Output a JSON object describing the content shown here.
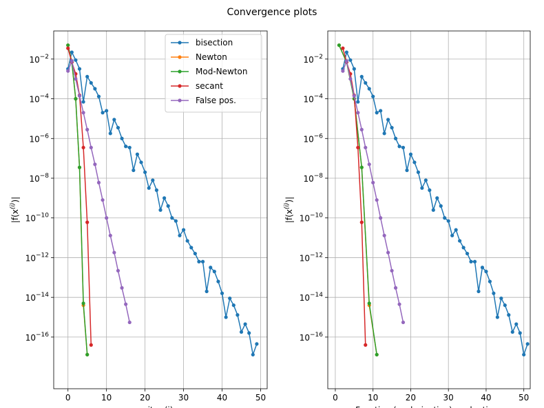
{
  "title": "Convergence plots",
  "chart_data": [
    {
      "type": "line",
      "log_y": true,
      "grid": true,
      "legend": "upper right",
      "xlabel": "iter (i)",
      "ylabel": [
        "|f(x",
        "(i)",
        ")|"
      ],
      "xlim": [
        -3.7,
        51.7
      ],
      "xticks": [
        0,
        10,
        20,
        30,
        40,
        50
      ],
      "ylim": [
        2.5e-19,
        0.26
      ],
      "yticks": [
        {
          "value": 1e-16,
          "label": "10−16"
        },
        {
          "value": 1e-14,
          "label": "10−14"
        },
        {
          "value": 1e-12,
          "label": "10−12"
        },
        {
          "value": 1e-10,
          "label": "10−10"
        },
        {
          "value": 1e-08,
          "label": "10−8"
        },
        {
          "value": 1e-06,
          "label": "10−6"
        },
        {
          "value": 0.0001,
          "label": "10−4"
        },
        {
          "value": 0.01,
          "label": "10−2"
        }
      ],
      "series": [
        {
          "name": "bisection",
          "color": "#1f77b4",
          "x": [
            0,
            1,
            2,
            3,
            4,
            5,
            6,
            7,
            8,
            9,
            10,
            11,
            12,
            13,
            14,
            15,
            16,
            17,
            18,
            19,
            20,
            21,
            22,
            23,
            24,
            25,
            26,
            27,
            28,
            29,
            30,
            31,
            32,
            33,
            34,
            35,
            36,
            37,
            38,
            39,
            40,
            41,
            42,
            43,
            44,
            45,
            46,
            47,
            48,
            49
          ],
          "values": [
            0.0032,
            0.022,
            0.0089,
            0.0032,
            7e-05,
            0.0013,
            0.00063,
            0.00032,
            0.00013,
            2e-05,
            2.5e-05,
            1.8e-06,
            8.9e-06,
            3.5e-06,
            1e-06,
            4e-07,
            3.5e-07,
            2.5e-08,
            1.6e-07,
            6.3e-08,
            2e-08,
            3.2e-09,
            7.9e-09,
            2.5e-09,
            2.5e-10,
            1e-09,
            4e-10,
            1e-10,
            7e-11,
            1.3e-11,
            2.5e-11,
            7e-12,
            3.2e-12,
            1.6e-12,
            6.3e-13,
            6.3e-13,
            2e-14,
            3.2e-13,
            2e-13,
            6.3e-14,
            1.6e-14,
            1e-15,
            8.9e-15,
            4e-15,
            1.3e-15,
            1.8e-16,
            4.5e-16,
            1.6e-16,
            1.3e-17,
            4.5e-17
          ]
        },
        {
          "name": "Newton",
          "color": "#ff7f0e",
          "x": [
            0,
            1,
            2,
            3,
            4,
            5
          ],
          "values": [
            0.05,
            0.007,
            0.0001,
            3.5e-08,
            4e-15,
            1.3e-17
          ]
        },
        {
          "name": "Mod-Newton",
          "color": "#2ca02c",
          "x": [
            0,
            1,
            2,
            3,
            4,
            5
          ],
          "values": [
            0.05,
            0.007,
            0.0001,
            3.5e-08,
            5e-15,
            1.3e-17
          ]
        },
        {
          "name": "secant",
          "color": "#d62728",
          "x": [
            0,
            1,
            2,
            3,
            4,
            5,
            6
          ],
          "values": [
            0.035,
            0.007,
            0.0018,
            0.00015,
            3.5e-07,
            6e-11,
            4e-17
          ]
        },
        {
          "name": "False pos.",
          "color": "#9467bd",
          "x": [
            0,
            1,
            2,
            3,
            4,
            5,
            6,
            7,
            8,
            9,
            10,
            11,
            12,
            13,
            14,
            15,
            16
          ],
          "values": [
            0.0025,
            0.008,
            0.001,
            0.00014,
            2e-05,
            2.8e-06,
            3.5e-07,
            5e-08,
            6e-09,
            8e-10,
            1e-10,
            1.3e-11,
            1.8e-12,
            2.2e-13,
            3e-14,
            4.5e-15,
            5.5e-16
          ]
        }
      ]
    },
    {
      "type": "line",
      "log_y": true,
      "grid": true,
      "xlabel": "Function (or derivative) evaluations",
      "ylabel": [
        "|f(x",
        "(i)",
        ")|"
      ],
      "xlim": [
        -2,
        51.7
      ],
      "xticks": [
        0,
        10,
        20,
        30,
        40,
        50
      ],
      "ylim": [
        2.5e-19,
        0.26
      ],
      "yticks": [
        {
          "value": 1e-16,
          "label": "10−16"
        },
        {
          "value": 1e-14,
          "label": "10−14"
        },
        {
          "value": 1e-12,
          "label": "10−12"
        },
        {
          "value": 1e-10,
          "label": "10−10"
        },
        {
          "value": 1e-08,
          "label": "10−8"
        },
        {
          "value": 1e-06,
          "label": "10−6"
        },
        {
          "value": 0.0001,
          "label": "10−4"
        },
        {
          "value": 0.01,
          "label": "10−2"
        }
      ],
      "series": [
        {
          "color": "#1f77b4",
          "x": [
            2,
            3,
            4,
            5,
            6,
            7,
            8,
            9,
            10,
            11,
            12,
            13,
            14,
            15,
            16,
            17,
            18,
            19,
            20,
            21,
            22,
            23,
            24,
            25,
            26,
            27,
            28,
            29,
            30,
            31,
            32,
            33,
            34,
            35,
            36,
            37,
            38,
            39,
            40,
            41,
            42,
            43,
            44,
            45,
            46,
            47,
            48,
            49,
            50,
            51
          ],
          "values": [
            0.0032,
            0.022,
            0.0089,
            0.0032,
            7e-05,
            0.0013,
            0.00063,
            0.00032,
            0.00013,
            2e-05,
            2.5e-05,
            1.8e-06,
            8.9e-06,
            3.5e-06,
            1e-06,
            4e-07,
            3.5e-07,
            2.5e-08,
            1.6e-07,
            6.3e-08,
            2e-08,
            3.2e-09,
            7.9e-09,
            2.5e-09,
            2.5e-10,
            1e-09,
            4e-10,
            1e-10,
            7e-11,
            1.3e-11,
            2.5e-11,
            7e-12,
            3.2e-12,
            1.6e-12,
            6.3e-13,
            6.3e-13,
            2e-14,
            3.2e-13,
            2e-13,
            6.3e-14,
            1.6e-14,
            1e-15,
            8.9e-15,
            4e-15,
            1.3e-15,
            1.8e-16,
            4.5e-16,
            1.6e-16,
            1.3e-17,
            4.5e-17
          ]
        },
        {
          "color": "#ff7f0e",
          "x": [
            1,
            3,
            5,
            7,
            9,
            11
          ],
          "values": [
            0.05,
            0.007,
            0.0001,
            3.5e-08,
            4e-15,
            1.3e-17
          ]
        },
        {
          "color": "#2ca02c",
          "x": [
            1,
            3,
            5,
            7,
            9,
            11
          ],
          "values": [
            0.05,
            0.007,
            0.0001,
            3.5e-08,
            5e-15,
            1.3e-17
          ]
        },
        {
          "color": "#d62728",
          "x": [
            2,
            3,
            4,
            5,
            6,
            7,
            8
          ],
          "values": [
            0.035,
            0.007,
            0.0018,
            0.00015,
            3.5e-07,
            6e-11,
            4e-17
          ]
        },
        {
          "color": "#9467bd",
          "x": [
            2,
            3,
            4,
            5,
            6,
            7,
            8,
            9,
            10,
            11,
            12,
            13,
            14,
            15,
            16,
            17,
            18
          ],
          "values": [
            0.0025,
            0.008,
            0.001,
            0.00014,
            2e-05,
            2.8e-06,
            3.5e-07,
            5e-08,
            6e-09,
            8e-10,
            1e-10,
            1.3e-11,
            1.8e-12,
            2.2e-13,
            3e-14,
            4.5e-15,
            5.5e-16
          ]
        }
      ]
    }
  ]
}
